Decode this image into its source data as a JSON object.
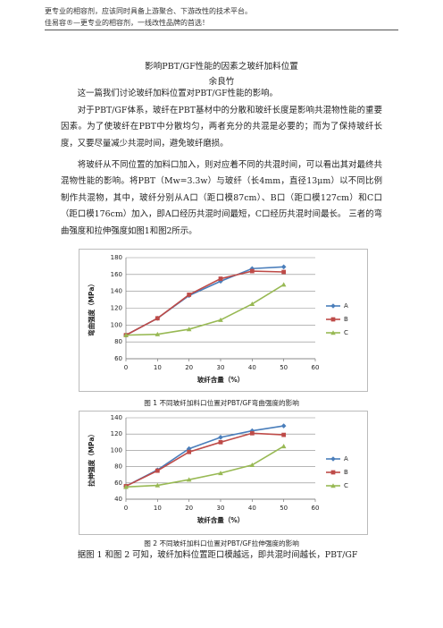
{
  "header": [
    "更专业的相容剂，应该同时具备上游聚合、下游改性的技术平台。",
    "佳易容®—更专业的相容剂，一线改性品牌的首选！"
  ],
  "title": "影响PBT/GF性能的因素之玻纤加料位置",
  "author": "余良竹",
  "paragraphs": [
    "这一篇我们讨论玻纤加料位置对PBT/GF性能的影响。",
    "对于PBT/GF体系，玻纤在PBT基材中的分散和玻纤长度是影响共混物性能的重要因素。为了使玻纤在PBT中分散均匀，两者充分的共混是必要的；而为了保持玻纤长度，又要尽量减少共混时间，避免玻纤磨损。",
    "将玻纤从不同位置的加料口加入，则对应着不同的共混时间，可以看出其对最终共混物性能的影响。将PBT（Mw=3.3w）与玻纤（长4mm，直径13μm）以不同比例制作共混物，其中，玻纤分别从A口（距口模87cm）、B口（距口模127cm）和C口（距口模176cm）加入，即A口经历共混时间最短，C口经历共混时间最长。 三者的弯曲强度和拉伸强度如图1和图2所示。",
    "据图 1 和图 2 可知，玻纤加料位置距口模越远，即共混时间越长，PBT/GF"
  ],
  "captions": [
    "图 1 不同玻纤加料口位置对PBT/GF弯曲强度的影响",
    "图 2 不同玻纤加料口位置对PBT/GF拉伸强度的影响"
  ],
  "chart_data": [
    {
      "type": "line",
      "xlabel": "玻纤含量（%）",
      "ylabel": "弯曲强度（MPa）",
      "x": [
        0,
        10,
        20,
        30,
        40,
        50
      ],
      "xlim": [
        0,
        60
      ],
      "xticks": [
        0,
        10,
        20,
        30,
        40,
        50,
        60
      ],
      "ylim": [
        60,
        180
      ],
      "yticks": [
        60,
        80,
        100,
        120,
        140,
        160,
        180
      ],
      "grid": true,
      "legend": "right",
      "series": [
        {
          "name": "A",
          "color": "#4a7ebb",
          "marker": "diamond",
          "values": [
            88,
            108,
            135,
            152,
            167,
            169
          ]
        },
        {
          "name": "B",
          "color": "#be4b48",
          "marker": "square",
          "values": [
            88,
            108,
            136,
            155,
            164,
            163
          ]
        },
        {
          "name": "C",
          "color": "#98b954",
          "marker": "triangle",
          "values": [
            88,
            89,
            95,
            106,
            125,
            148
          ]
        }
      ]
    },
    {
      "type": "line",
      "xlabel": "玻纤含量（%）",
      "ylabel": "拉伸强度（MPa）",
      "x": [
        0,
        10,
        20,
        30,
        40,
        50
      ],
      "xlim": [
        0,
        60
      ],
      "xticks": [
        0,
        10,
        20,
        30,
        40,
        50,
        60
      ],
      "ylim": [
        40,
        140
      ],
      "yticks": [
        40,
        60,
        80,
        100,
        120,
        140
      ],
      "grid": true,
      "legend": "right",
      "series": [
        {
          "name": "A",
          "color": "#4a7ebb",
          "marker": "diamond",
          "values": [
            56,
            76,
            102,
            116,
            124,
            130
          ]
        },
        {
          "name": "B",
          "color": "#be4b48",
          "marker": "square",
          "values": [
            56,
            75,
            98,
            110,
            121,
            119
          ]
        },
        {
          "name": "C",
          "color": "#98b954",
          "marker": "triangle",
          "values": [
            55,
            57,
            64,
            72,
            82,
            105
          ]
        }
      ]
    }
  ]
}
